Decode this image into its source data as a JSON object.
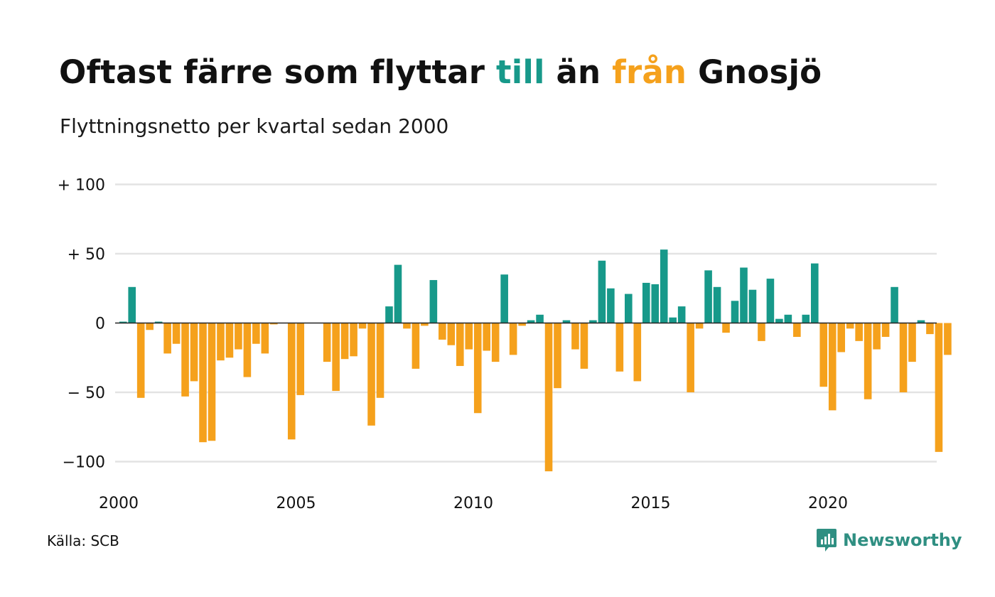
{
  "title": {
    "part1": "Oftast färre som flyttar ",
    "to_word": "till",
    "part2": " än ",
    "from_word": "från",
    "part3": " Gnosjö"
  },
  "subtitle": "Flyttningsnetto per kvartal sedan 2000",
  "source": "Källa: SCB",
  "brand": {
    "name": "Newsworthy",
    "logo_icon": "bar-chart-icon"
  },
  "colors": {
    "positive": "#17998a",
    "negative": "#f5a11c",
    "grid": "#e3e3e3",
    "axis": "#222222",
    "brand": "#2f8f82"
  },
  "chart_data": {
    "type": "bar",
    "title": "Oftast färre som flyttar till än från Gnosjö",
    "subtitle": "Flyttningsnetto per kvartal sedan 2000",
    "ylim": [
      -110,
      100
    ],
    "yticks": [
      100,
      50,
      0,
      -50,
      -100
    ],
    "ytick_labels": [
      "+ 100",
      "+  50",
      "0",
      "− 50",
      "−100"
    ],
    "xticks": [
      2000,
      2005,
      2010,
      2015,
      2020
    ],
    "xtick_labels": [
      "2000",
      "2005",
      "2010",
      "2015",
      "2020"
    ],
    "grid": true,
    "start": "2000 Q1",
    "values": [
      1,
      26,
      -54,
      -5,
      1,
      -22,
      -15,
      -53,
      -42,
      -86,
      -85,
      -27,
      -25,
      -19,
      -39,
      -15,
      -22,
      -1,
      0,
      -84,
      -52,
      0,
      0,
      -28,
      -49,
      -26,
      -24,
      -4,
      -74,
      -54,
      12,
      42,
      -4,
      -33,
      -2,
      31,
      -12,
      -16,
      -31,
      -19,
      -65,
      -20,
      -28,
      35,
      -23,
      -2,
      2,
      6,
      -107,
      -47,
      2,
      -19,
      -33,
      2,
      45,
      25,
      -35,
      21,
      -42,
      29,
      28,
      53,
      4,
      12,
      -50,
      -4,
      38,
      26,
      -7,
      16,
      40,
      24,
      -13,
      32,
      3,
      6,
      -10,
      6,
      43,
      -46,
      -63,
      -21,
      -4,
      -13,
      -55,
      -19,
      -10,
      26,
      -50,
      -28,
      2,
      -8,
      -93,
      -23
    ]
  }
}
